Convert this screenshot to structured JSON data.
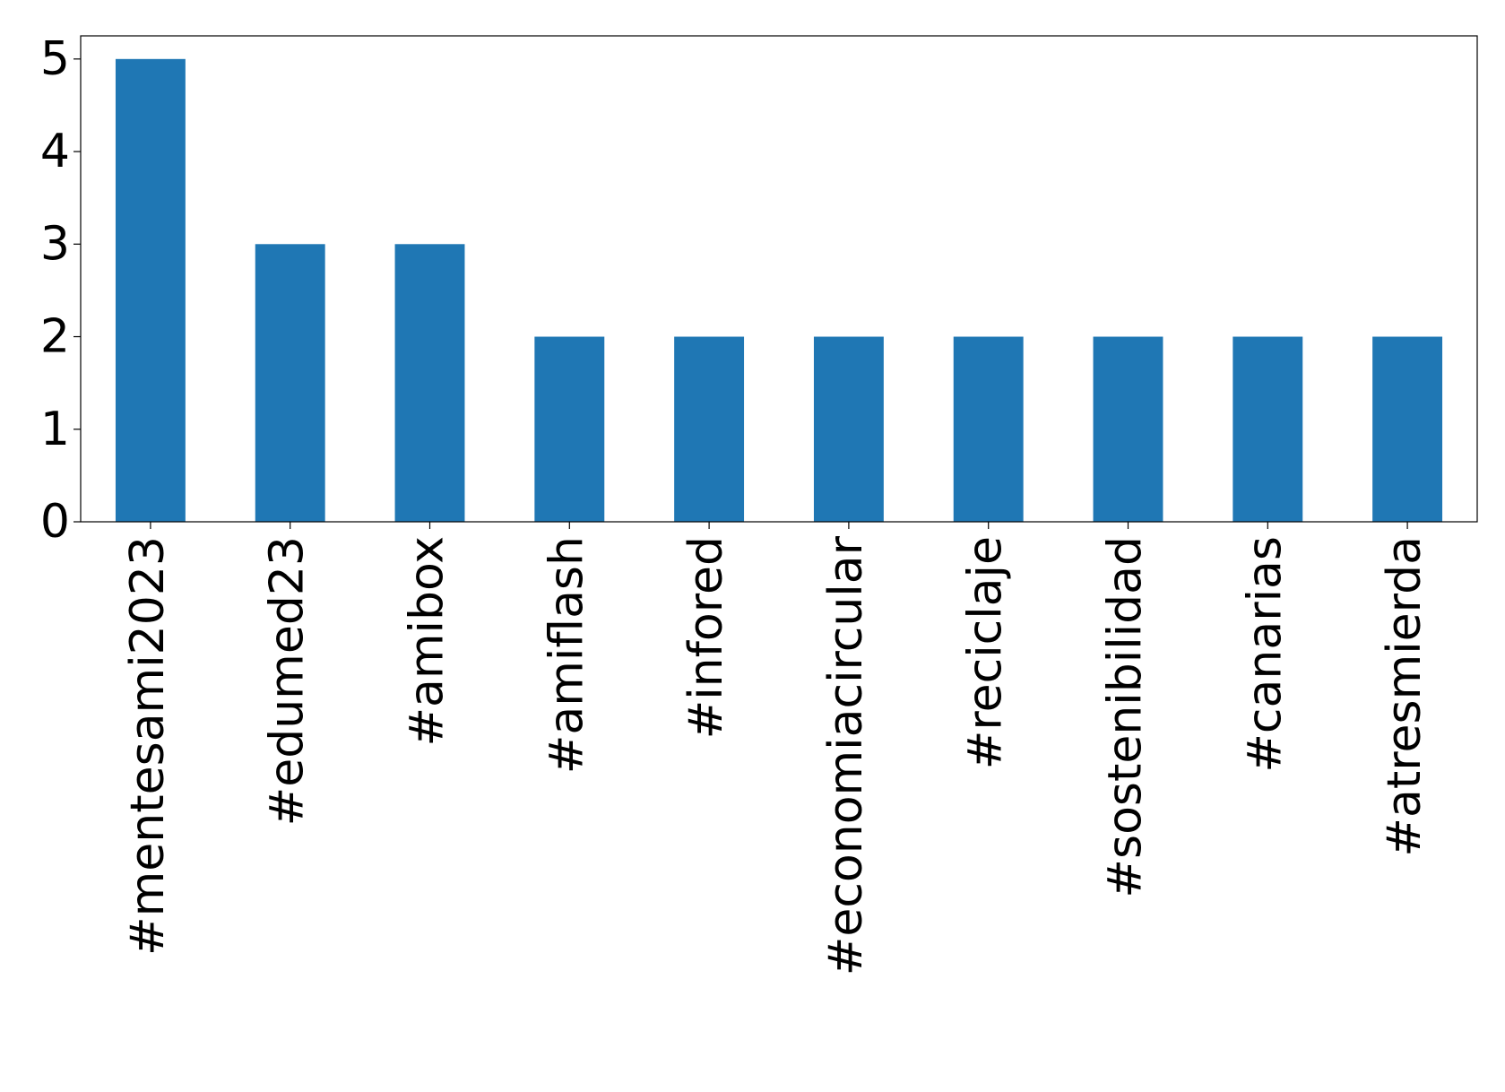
{
  "chart_data": {
    "type": "bar",
    "categories": [
      "#mentesami2023",
      "#edumed23",
      "#amibox",
      "#amiflash",
      "#infored",
      "#economiacircular",
      "#reciclaje",
      "#sostenibilidad",
      "#canarias",
      "#atresmierda"
    ],
    "values": [
      5,
      3,
      3,
      2,
      2,
      2,
      2,
      2,
      2,
      2
    ],
    "color": "#1f77b4",
    "ylim": [
      0,
      5.25
    ],
    "yticks": [
      0,
      1,
      2,
      3,
      4,
      5
    ],
    "grid": false
  }
}
